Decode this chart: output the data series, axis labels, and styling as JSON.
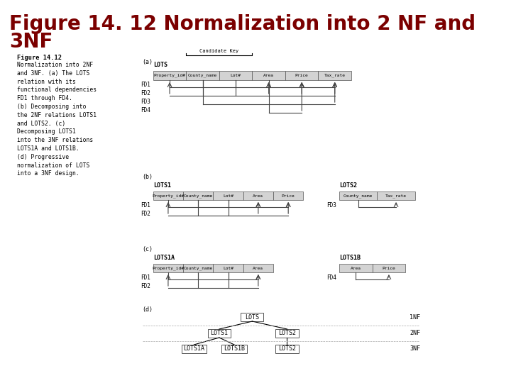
{
  "title_line1": "Figure 14. 12 Normalization into 2 NF and",
  "title_line2": "3NF",
  "title_color": "#7B0000",
  "title_fontsize": 20,
  "bg_color": "#ffffff",
  "caption_title": "Figure 14.12",
  "caption_body": "Normalization into 2NF\nand 3NF. (a) The LOTS\nrelation with its\nfunctional dependencies\nFD1 through FD4.\n(b) Decomposing into\nthe 2NF relations LOTS1\nand LOTS2. (c)\nDecomposing LOTS1\ninto the 3NF relations\nLOTS1A and LOTS1B.\n(d) Progressive\nnormalization of LOTS\ninto a 3NF design.",
  "lots_cols": [
    "Property_id#",
    "County_name",
    "Lot#",
    "Area",
    "Price",
    "Tax_rate"
  ],
  "lots1_cols": [
    "Property_id#",
    "County_name",
    "Lot#",
    "Area",
    "Price"
  ],
  "lots2_cols": [
    "County_name",
    "Tax_rate"
  ],
  "lots1a_cols": [
    "Property_id#",
    "County_name",
    "Lot#",
    "Area"
  ],
  "lots1b_cols": [
    "Area",
    "Price"
  ],
  "label_fontsize": 5.5
}
